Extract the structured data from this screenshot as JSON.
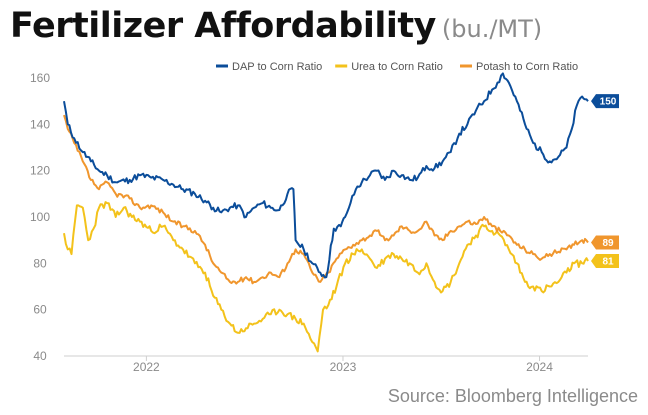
{
  "chart_data": {
    "type": "line",
    "title": "Fertilizer Affordability",
    "subtitle": "(bu./MT)",
    "source": "Source: Bloomberg Intelligence",
    "x_start": "2021-08-01",
    "x_end": "2024-03-31",
    "xticks": [
      {
        "label": "2022",
        "date": "2022-01-01"
      },
      {
        "label": "2023",
        "date": "2023-01-01"
      },
      {
        "label": "2024",
        "date": "2024-01-01"
      }
    ],
    "ylim": [
      40,
      160
    ],
    "yticks": [
      40,
      60,
      80,
      100,
      120,
      140,
      160
    ],
    "grid": false,
    "legend_position": "top-right",
    "series": [
      {
        "name": "DAP to Corn Ratio",
        "color": "#0b4d9a",
        "end_label": "150",
        "points": [
          [
            "2021-08-01",
            150
          ],
          [
            "2021-08-08",
            140
          ],
          [
            "2021-08-20",
            134
          ],
          [
            "2021-09-05",
            128
          ],
          [
            "2021-09-20",
            124
          ],
          [
            "2021-10-05",
            120
          ],
          [
            "2021-10-20",
            118
          ],
          [
            "2021-11-05",
            115
          ],
          [
            "2021-12-01",
            116
          ],
          [
            "2021-12-20",
            118
          ],
          [
            "2022-01-10",
            117
          ],
          [
            "2022-02-01",
            116
          ],
          [
            "2022-02-20",
            114
          ],
          [
            "2022-03-10",
            112
          ],
          [
            "2022-04-01",
            110
          ],
          [
            "2022-04-20",
            107
          ],
          [
            "2022-05-05",
            104
          ],
          [
            "2022-05-20",
            102
          ],
          [
            "2022-06-05",
            104
          ],
          [
            "2022-06-20",
            105
          ],
          [
            "2022-07-05",
            100
          ],
          [
            "2022-07-20",
            104
          ],
          [
            "2022-08-05",
            106
          ],
          [
            "2022-08-20",
            104
          ],
          [
            "2022-09-05",
            103
          ],
          [
            "2022-09-20",
            110
          ],
          [
            "2022-10-01",
            112
          ],
          [
            "2022-10-05",
            90
          ],
          [
            "2022-10-20",
            86
          ],
          [
            "2022-11-05",
            80
          ],
          [
            "2022-11-20",
            76
          ],
          [
            "2022-12-01",
            74
          ],
          [
            "2022-12-15",
            95
          ],
          [
            "2022-12-28",
            96
          ],
          [
            "2023-01-05",
            100
          ],
          [
            "2023-01-15",
            106
          ],
          [
            "2023-01-25",
            112
          ],
          [
            "2023-02-05",
            115
          ],
          [
            "2023-02-20",
            118
          ],
          [
            "2023-03-05",
            120
          ],
          [
            "2023-03-20",
            116
          ],
          [
            "2023-04-05",
            120
          ],
          [
            "2023-04-20",
            118
          ],
          [
            "2023-05-05",
            116
          ],
          [
            "2023-05-20",
            117
          ],
          [
            "2023-06-05",
            122
          ],
          [
            "2023-06-20",
            121
          ],
          [
            "2023-07-05",
            124
          ],
          [
            "2023-07-20",
            128
          ],
          [
            "2023-08-05",
            136
          ],
          [
            "2023-08-20",
            140
          ],
          [
            "2023-09-05",
            146
          ],
          [
            "2023-09-20",
            150
          ],
          [
            "2023-10-05",
            155
          ],
          [
            "2023-10-15",
            158
          ],
          [
            "2023-10-25",
            162
          ],
          [
            "2023-11-05",
            158
          ],
          [
            "2023-11-20",
            150
          ],
          [
            "2023-12-05",
            140
          ],
          [
            "2023-12-20",
            132
          ],
          [
            "2024-01-05",
            128
          ],
          [
            "2024-01-20",
            124
          ],
          [
            "2024-02-05",
            126
          ],
          [
            "2024-02-20",
            130
          ],
          [
            "2024-03-01",
            138
          ],
          [
            "2024-03-10",
            148
          ],
          [
            "2024-03-20",
            152
          ],
          [
            "2024-03-31",
            150
          ]
        ]
      },
      {
        "name": "Urea to Corn Ratio",
        "color": "#f3c21b",
        "end_label": "81",
        "points": [
          [
            "2021-08-01",
            93
          ],
          [
            "2021-08-08",
            86
          ],
          [
            "2021-08-15",
            84
          ],
          [
            "2021-08-25",
            105
          ],
          [
            "2021-09-05",
            104
          ],
          [
            "2021-09-15",
            90
          ],
          [
            "2021-09-25",
            95
          ],
          [
            "2021-10-05",
            104
          ],
          [
            "2021-10-20",
            106
          ],
          [
            "2021-11-05",
            100
          ],
          [
            "2021-11-20",
            104
          ],
          [
            "2021-12-05",
            100
          ],
          [
            "2021-12-20",
            98
          ],
          [
            "2022-01-10",
            94
          ],
          [
            "2022-02-01",
            96
          ],
          [
            "2022-02-20",
            90
          ],
          [
            "2022-03-10",
            86
          ],
          [
            "2022-04-01",
            80
          ],
          [
            "2022-04-20",
            76
          ],
          [
            "2022-05-05",
            66
          ],
          [
            "2022-05-20",
            60
          ],
          [
            "2022-06-05",
            54
          ],
          [
            "2022-06-20",
            50
          ],
          [
            "2022-07-05",
            52
          ],
          [
            "2022-07-20",
            54
          ],
          [
            "2022-08-05",
            56
          ],
          [
            "2022-08-20",
            58
          ],
          [
            "2022-09-05",
            60
          ],
          [
            "2022-09-20",
            58
          ],
          [
            "2022-10-05",
            56
          ],
          [
            "2022-10-20",
            54
          ],
          [
            "2022-11-05",
            46
          ],
          [
            "2022-11-15",
            42
          ],
          [
            "2022-11-25",
            60
          ],
          [
            "2022-12-05",
            62
          ],
          [
            "2022-12-20",
            70
          ],
          [
            "2023-01-05",
            80
          ],
          [
            "2023-01-20",
            84
          ],
          [
            "2023-02-05",
            86
          ],
          [
            "2023-02-20",
            82
          ],
          [
            "2023-03-05",
            78
          ],
          [
            "2023-03-20",
            82
          ],
          [
            "2023-04-05",
            84
          ],
          [
            "2023-04-20",
            82
          ],
          [
            "2023-05-05",
            80
          ],
          [
            "2023-05-20",
            76
          ],
          [
            "2023-06-05",
            80
          ],
          [
            "2023-06-20",
            72
          ],
          [
            "2023-07-05",
            68
          ],
          [
            "2023-07-20",
            72
          ],
          [
            "2023-08-05",
            80
          ],
          [
            "2023-08-20",
            88
          ],
          [
            "2023-09-05",
            92
          ],
          [
            "2023-09-20",
            96
          ],
          [
            "2023-10-05",
            94
          ],
          [
            "2023-10-20",
            92
          ],
          [
            "2023-11-05",
            86
          ],
          [
            "2023-11-20",
            80
          ],
          [
            "2023-12-05",
            72
          ],
          [
            "2023-12-20",
            70
          ],
          [
            "2024-01-05",
            68
          ],
          [
            "2024-01-20",
            70
          ],
          [
            "2024-02-05",
            72
          ],
          [
            "2024-02-20",
            76
          ],
          [
            "2024-03-05",
            80
          ],
          [
            "2024-03-20",
            80
          ],
          [
            "2024-03-31",
            81
          ]
        ]
      },
      {
        "name": "Potash to Corn Ratio",
        "color": "#f0962d",
        "end_label": "89",
        "points": [
          [
            "2021-08-01",
            144
          ],
          [
            "2021-08-08",
            138
          ],
          [
            "2021-08-20",
            132
          ],
          [
            "2021-09-05",
            124
          ],
          [
            "2021-09-20",
            116
          ],
          [
            "2021-10-05",
            112
          ],
          [
            "2021-10-20",
            115
          ],
          [
            "2021-11-05",
            110
          ],
          [
            "2021-12-01",
            108
          ],
          [
            "2021-12-20",
            104
          ],
          [
            "2022-01-10",
            105
          ],
          [
            "2022-02-01",
            102
          ],
          [
            "2022-02-20",
            98
          ],
          [
            "2022-03-10",
            96
          ],
          [
            "2022-04-01",
            94
          ],
          [
            "2022-04-20",
            88
          ],
          [
            "2022-05-05",
            80
          ],
          [
            "2022-05-20",
            76
          ],
          [
            "2022-06-05",
            72
          ],
          [
            "2022-06-20",
            72
          ],
          [
            "2022-07-05",
            74
          ],
          [
            "2022-07-20",
            72
          ],
          [
            "2022-08-05",
            74
          ],
          [
            "2022-08-20",
            76
          ],
          [
            "2022-09-05",
            74
          ],
          [
            "2022-09-20",
            80
          ],
          [
            "2022-10-05",
            86
          ],
          [
            "2022-10-20",
            84
          ],
          [
            "2022-11-05",
            76
          ],
          [
            "2022-11-20",
            72
          ],
          [
            "2022-12-05",
            76
          ],
          [
            "2022-12-20",
            82
          ],
          [
            "2023-01-05",
            86
          ],
          [
            "2023-01-20",
            88
          ],
          [
            "2023-02-05",
            90
          ],
          [
            "2023-02-20",
            92
          ],
          [
            "2023-03-05",
            94
          ],
          [
            "2023-03-20",
            90
          ],
          [
            "2023-04-05",
            92
          ],
          [
            "2023-04-20",
            96
          ],
          [
            "2023-05-05",
            94
          ],
          [
            "2023-05-20",
            94
          ],
          [
            "2023-06-05",
            98
          ],
          [
            "2023-06-20",
            92
          ],
          [
            "2023-07-05",
            90
          ],
          [
            "2023-07-20",
            94
          ],
          [
            "2023-08-05",
            96
          ],
          [
            "2023-08-20",
            98
          ],
          [
            "2023-09-05",
            97
          ],
          [
            "2023-09-20",
            100
          ],
          [
            "2023-10-05",
            96
          ],
          [
            "2023-10-20",
            94
          ],
          [
            "2023-11-05",
            92
          ],
          [
            "2023-11-20",
            88
          ],
          [
            "2023-12-05",
            86
          ],
          [
            "2023-12-20",
            84
          ],
          [
            "2024-01-05",
            82
          ],
          [
            "2024-01-20",
            84
          ],
          [
            "2024-02-05",
            85
          ],
          [
            "2024-02-20",
            86
          ],
          [
            "2024-03-05",
            88
          ],
          [
            "2024-03-20",
            90
          ],
          [
            "2024-03-31",
            89
          ]
        ]
      }
    ]
  }
}
